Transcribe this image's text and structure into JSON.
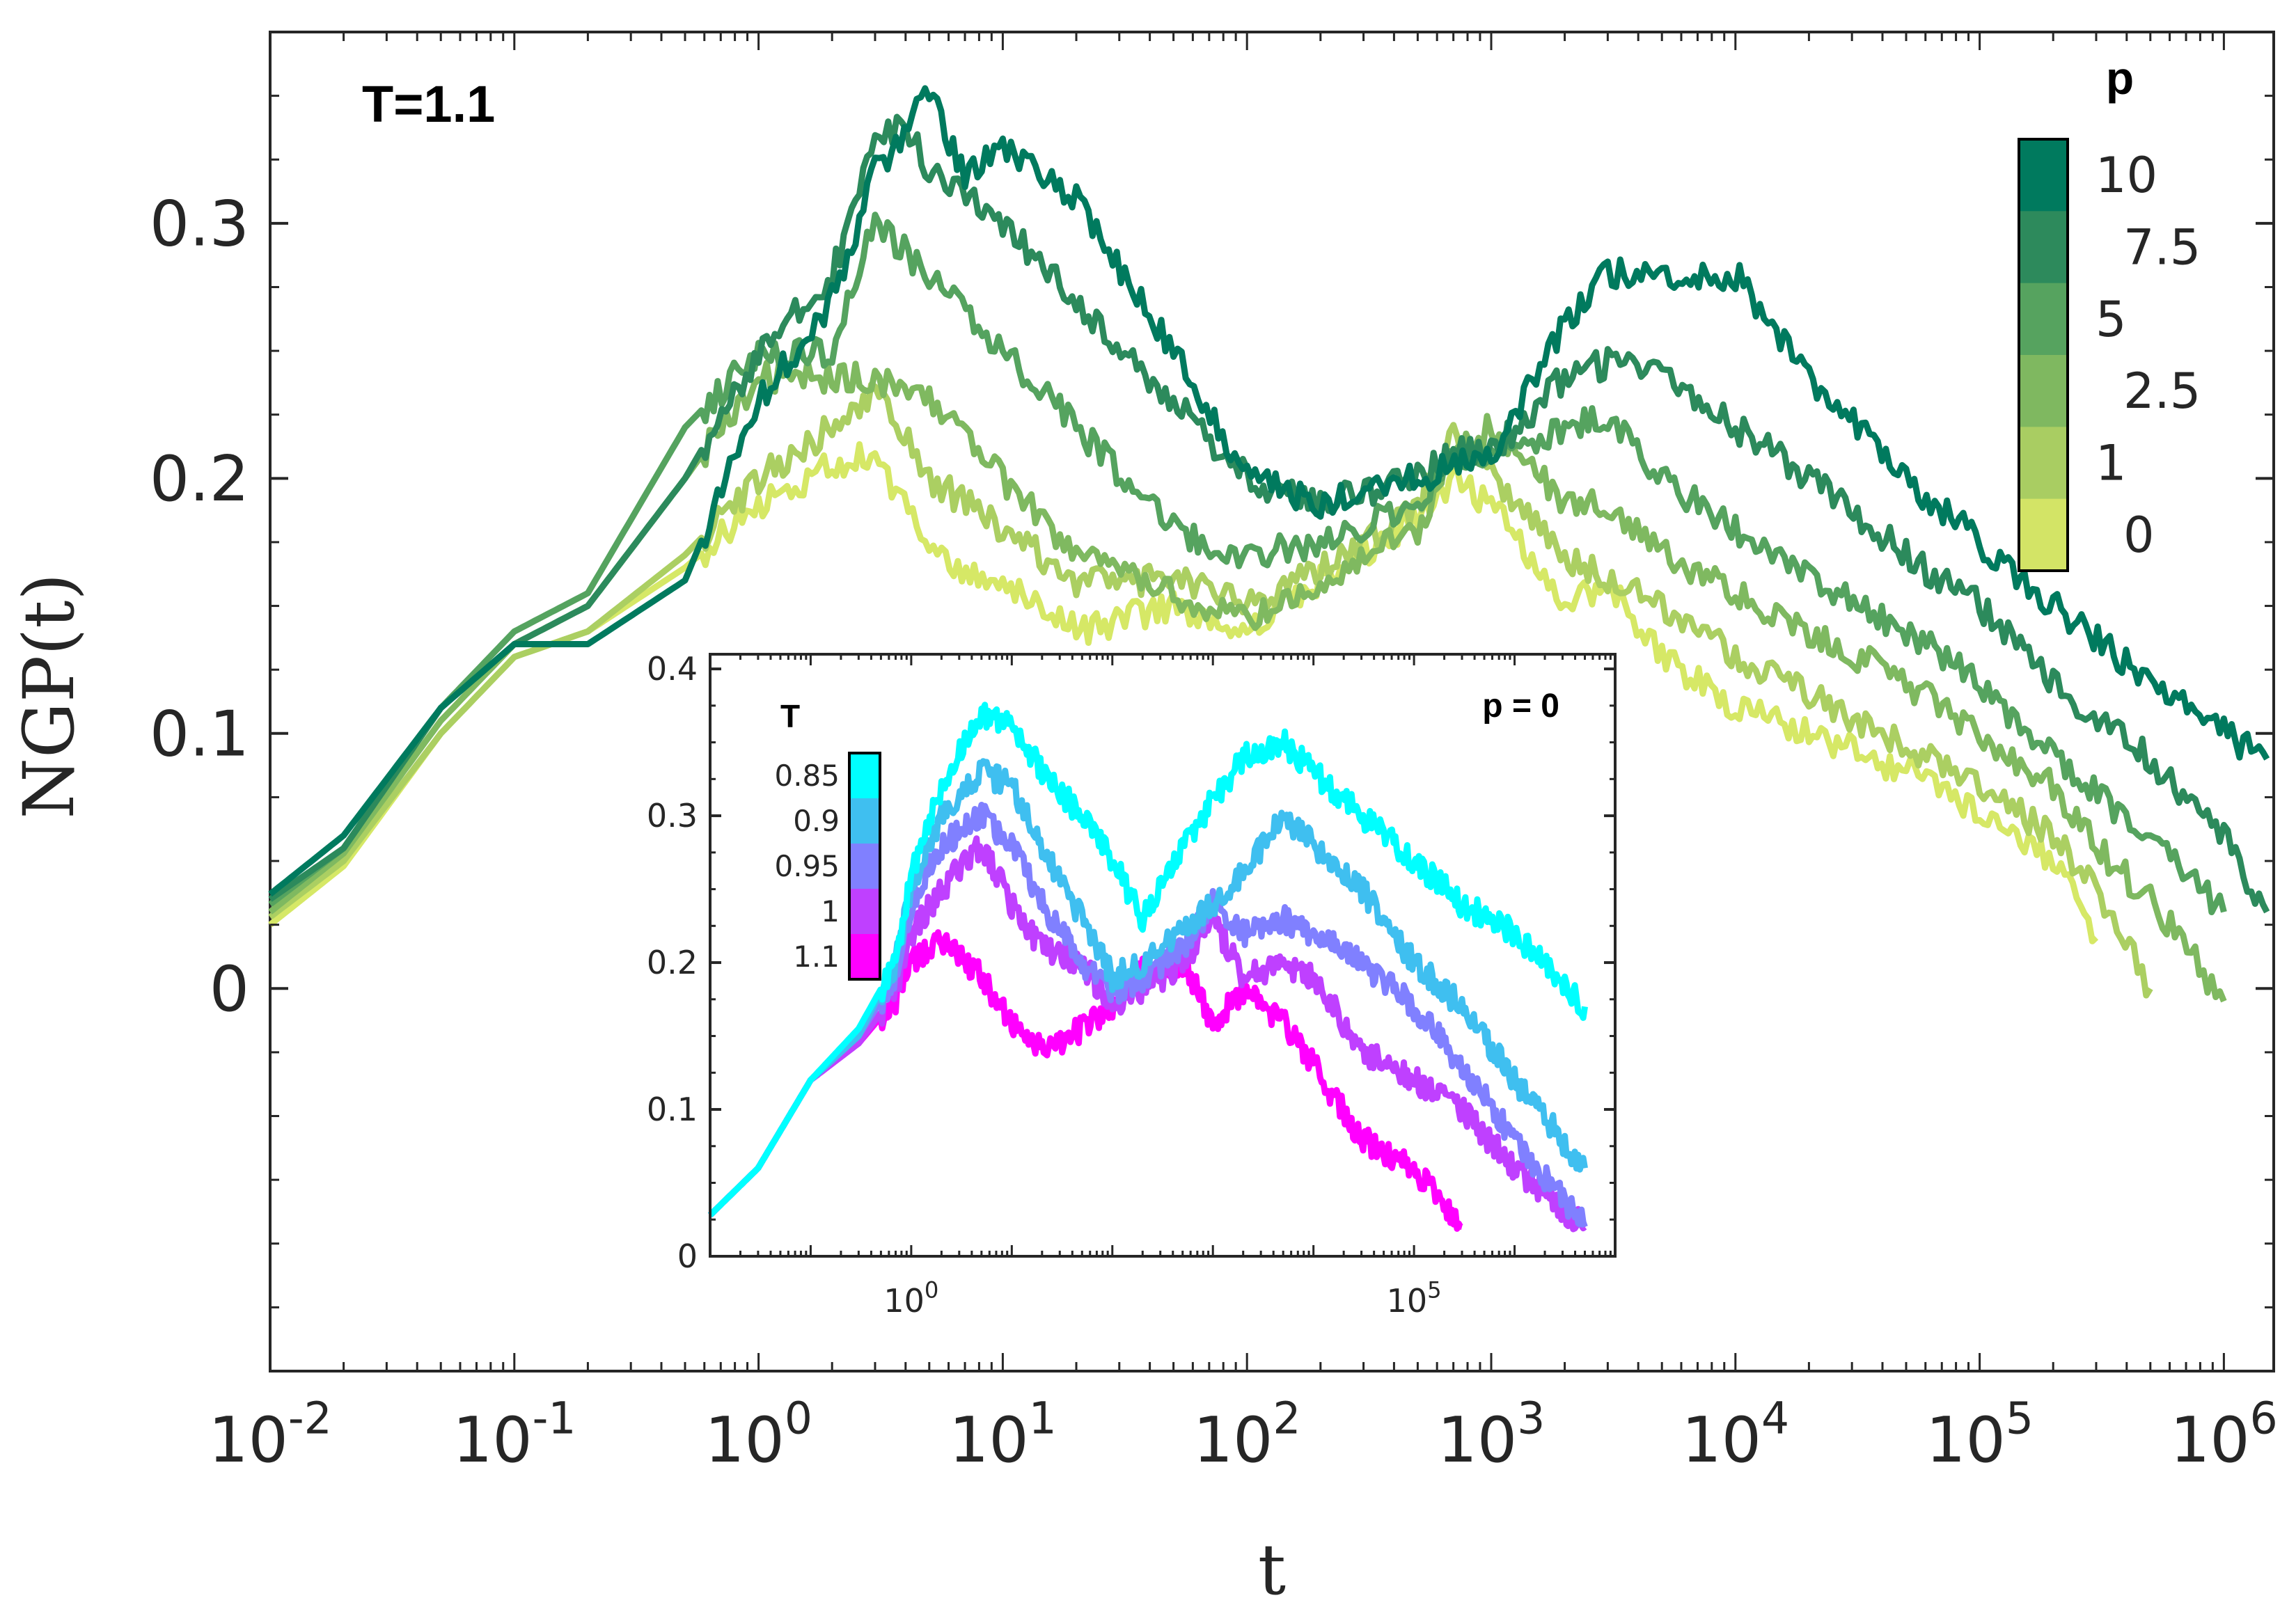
{
  "chart_data": [
    {
      "id": "main",
      "type": "line",
      "title": "",
      "annotation": "T=1.1",
      "xlabel": "t",
      "ylabel": "NGP(t)",
      "xscale": "log",
      "xlim": [
        0.01,
        1600000
      ],
      "ylim": [
        -0.15,
        0.375
      ],
      "xticks": [
        0.01,
        0.1,
        1,
        10,
        100,
        1000,
        10000,
        100000,
        1000000
      ],
      "xtick_labels": [
        {
          "base": "10",
          "exp": "-2"
        },
        {
          "base": "10",
          "exp": "-1"
        },
        {
          "base": "10",
          "exp": "0"
        },
        {
          "base": "10",
          "exp": "1"
        },
        {
          "base": "10",
          "exp": "2"
        },
        {
          "base": "10",
          "exp": "3"
        },
        {
          "base": "10",
          "exp": "4"
        },
        {
          "base": "10",
          "exp": "5"
        },
        {
          "base": "10",
          "exp": "6"
        }
      ],
      "yticks": [
        0,
        0.1,
        0.2,
        0.3
      ],
      "ytick_labels": [
        "0",
        "0.1",
        "0.2",
        "0.3"
      ],
      "colorbar": {
        "title": "p",
        "placement": "top-right",
        "labels": [
          "10",
          "7.5",
          "5",
          "2.5",
          "1",
          "0"
        ],
        "colors": [
          "#007a5e",
          "#2d8a5c",
          "#56a35f",
          "#7fb860",
          "#a9cd62",
          "#d3e466"
        ]
      },
      "series": [
        {
          "name": "p=0",
          "color": "#d6e866",
          "x": [
            0.01,
            0.02,
            0.05,
            0.1,
            0.2,
            0.5,
            1,
            2,
            3,
            5,
            10,
            20,
            50,
            100,
            200,
            500,
            700,
            1000,
            2000,
            3000,
            5000,
            10000,
            20000,
            50000,
            100000,
            200000,
            300000
          ],
          "y": [
            0.025,
            0.048,
            0.1,
            0.13,
            0.14,
            0.165,
            0.19,
            0.205,
            0.21,
            0.17,
            0.16,
            0.14,
            0.15,
            0.14,
            0.16,
            0.185,
            0.2,
            0.19,
            0.15,
            0.16,
            0.13,
            0.11,
            0.1,
            0.085,
            0.07,
            0.05,
            0.02
          ]
        },
        {
          "name": "p=1",
          "color": "#abcf62",
          "x": [
            0.01,
            0.02,
            0.05,
            0.1,
            0.2,
            0.5,
            1,
            2,
            3,
            5,
            10,
            20,
            50,
            100,
            200,
            500,
            700,
            1000,
            2000,
            3000,
            5000,
            10000,
            20000,
            50000,
            100000,
            200000,
            300000,
            500000
          ],
          "y": [
            0.028,
            0.05,
            0.1,
            0.13,
            0.14,
            0.17,
            0.2,
            0.22,
            0.235,
            0.2,
            0.18,
            0.16,
            0.16,
            0.15,
            0.165,
            0.19,
            0.215,
            0.2,
            0.17,
            0.16,
            0.15,
            0.13,
            0.115,
            0.095,
            0.08,
            0.06,
            0.04,
            0.0
          ]
        },
        {
          "name": "p=2.5",
          "color": "#7fb960",
          "x": [
            0.01,
            0.02,
            0.05,
            0.1,
            0.2,
            0.5,
            1,
            2,
            3,
            5,
            10,
            20,
            50,
            100,
            200,
            500,
            700,
            1000,
            2000,
            3000,
            5000,
            10000,
            20000,
            50000,
            100000,
            200000,
            300000,
            500000,
            1000000
          ],
          "y": [
            0.03,
            0.053,
            0.105,
            0.135,
            0.15,
            0.2,
            0.24,
            0.24,
            0.24,
            0.23,
            0.2,
            0.17,
            0.155,
            0.145,
            0.16,
            0.18,
            0.21,
            0.22,
            0.19,
            0.19,
            0.17,
            0.155,
            0.14,
            0.12,
            0.1,
            0.08,
            0.055,
            0.035,
            -0.005
          ]
        },
        {
          "name": "p=5",
          "color": "#55a35f",
          "x": [
            0.01,
            0.02,
            0.05,
            0.1,
            0.2,
            0.5,
            1,
            2,
            3,
            5,
            10,
            20,
            50,
            100,
            200,
            500,
            700,
            1000,
            2000,
            3000,
            5000,
            10000,
            20000,
            50000,
            100000,
            200000,
            500000,
            1000000
          ],
          "y": [
            0.033,
            0.055,
            0.11,
            0.14,
            0.155,
            0.22,
            0.25,
            0.25,
            0.3,
            0.28,
            0.25,
            0.22,
            0.18,
            0.17,
            0.175,
            0.19,
            0.21,
            0.21,
            0.22,
            0.225,
            0.2,
            0.18,
            0.16,
            0.14,
            0.12,
            0.09,
            0.06,
            0.03
          ]
        },
        {
          "name": "p=7.5",
          "color": "#2c8a5c",
          "x": [
            0.01,
            0.02,
            0.05,
            0.1,
            0.2,
            0.5,
            1,
            2,
            3,
            4,
            5,
            10,
            20,
            50,
            100,
            200,
            500,
            700,
            1000,
            2000,
            3000,
            5000,
            10000,
            20000,
            50000,
            100000,
            200000,
            500000,
            1000000,
            1500000
          ],
          "y": [
            0.035,
            0.055,
            0.11,
            0.135,
            0.15,
            0.2,
            0.25,
            0.28,
            0.33,
            0.34,
            0.32,
            0.3,
            0.27,
            0.23,
            0.2,
            0.19,
            0.2,
            0.21,
            0.21,
            0.24,
            0.245,
            0.24,
            0.22,
            0.2,
            0.17,
            0.15,
            0.12,
            0.09,
            0.06,
            0.03
          ]
        },
        {
          "name": "p=10",
          "color": "#007a5e",
          "x": [
            0.01,
            0.02,
            0.05,
            0.1,
            0.2,
            0.5,
            1,
            2,
            3,
            5,
            7,
            10,
            20,
            50,
            100,
            200,
            500,
            1000,
            2000,
            3000,
            5000,
            10000,
            20000,
            50000,
            100000,
            200000,
            500000,
            1000000,
            1500000
          ],
          "y": [
            0.037,
            0.06,
            0.11,
            0.135,
            0.135,
            0.16,
            0.23,
            0.27,
            0.32,
            0.35,
            0.32,
            0.33,
            0.31,
            0.25,
            0.2,
            0.19,
            0.2,
            0.21,
            0.26,
            0.28,
            0.28,
            0.28,
            0.24,
            0.2,
            0.175,
            0.15,
            0.12,
            0.1,
            0.09
          ]
        }
      ]
    },
    {
      "id": "inset",
      "type": "line",
      "annotation": "p = 0",
      "xscale": "log",
      "xlim": [
        0.01,
        10000000
      ],
      "ylim": [
        0,
        0.41
      ],
      "xticks": [
        1,
        100000
      ],
      "xtick_labels": [
        {
          "base": "10",
          "exp": "0"
        },
        {
          "base": "10",
          "exp": "5"
        }
      ],
      "yticks": [
        0,
        0.1,
        0.2,
        0.3,
        0.4
      ],
      "ytick_labels": [
        "0",
        "0.1",
        "0.2",
        "0.3",
        "0.4"
      ],
      "colorbar": {
        "title": "T",
        "placement": "top-left",
        "labels": [
          "0.85",
          "0.9",
          "0.95",
          "1",
          "1.1"
        ],
        "colors": [
          "#00ffff",
          "#3fbff0",
          "#8080ff",
          "#bf40ff",
          "#ff00ff"
        ]
      },
      "series": [
        {
          "name": "T=1.1",
          "color": "#ff00ff",
          "x": [
            0.01,
            0.03,
            0.1,
            0.3,
            0.7,
            1,
            2,
            5,
            10,
            20,
            50,
            100,
            200,
            500,
            1000,
            2000,
            5000,
            10000,
            30000,
            100000,
            300000
          ],
          "y": [
            0.028,
            0.06,
            0.12,
            0.145,
            0.175,
            0.2,
            0.215,
            0.19,
            0.16,
            0.14,
            0.155,
            0.17,
            0.195,
            0.2,
            0.16,
            0.18,
            0.16,
            0.13,
            0.08,
            0.06,
            0.02
          ]
        },
        {
          "name": "T=1",
          "color": "#bf40ff",
          "x": [
            0.01,
            0.03,
            0.1,
            0.3,
            0.7,
            1,
            2,
            5,
            10,
            20,
            50,
            100,
            200,
            500,
            1000,
            2000,
            5000,
            10000,
            30000,
            100000,
            300000,
            1000000,
            5000000
          ],
          "y": [
            0.028,
            0.06,
            0.12,
            0.145,
            0.18,
            0.22,
            0.25,
            0.28,
            0.24,
            0.21,
            0.2,
            0.17,
            0.18,
            0.2,
            0.23,
            0.19,
            0.2,
            0.19,
            0.14,
            0.12,
            0.1,
            0.06,
            0.02
          ]
        },
        {
          "name": "T=0.95",
          "color": "#8080ff",
          "x": [
            0.01,
            0.03,
            0.1,
            0.3,
            0.7,
            1,
            2,
            5,
            10,
            20,
            50,
            100,
            200,
            500,
            1000,
            2000,
            5000,
            10000,
            30000,
            100000,
            300000,
            1000000,
            5000000
          ],
          "y": [
            0.028,
            0.06,
            0.12,
            0.15,
            0.19,
            0.24,
            0.28,
            0.3,
            0.28,
            0.24,
            0.2,
            0.18,
            0.19,
            0.21,
            0.24,
            0.22,
            0.23,
            0.22,
            0.2,
            0.17,
            0.13,
            0.08,
            0.02
          ]
        },
        {
          "name": "T=0.9",
          "color": "#3fbff0",
          "x": [
            0.01,
            0.03,
            0.1,
            0.3,
            0.7,
            1,
            2,
            5,
            10,
            20,
            50,
            100,
            200,
            500,
            1000,
            2000,
            5000,
            10000,
            30000,
            100000,
            300000,
            1000000,
            5000000
          ],
          "y": [
            0.028,
            0.06,
            0.12,
            0.15,
            0.2,
            0.25,
            0.3,
            0.33,
            0.32,
            0.28,
            0.23,
            0.19,
            0.2,
            0.22,
            0.24,
            0.26,
            0.3,
            0.28,
            0.25,
            0.2,
            0.17,
            0.12,
            0.06
          ]
        },
        {
          "name": "T=0.85",
          "color": "#00ffff",
          "x": [
            0.01,
            0.03,
            0.1,
            0.3,
            0.7,
            1,
            2,
            5,
            10,
            20,
            50,
            100,
            200,
            500,
            1000,
            2000,
            5000,
            10000,
            30000,
            100000,
            300000,
            1000000,
            5000000
          ],
          "y": [
            0.028,
            0.06,
            0.12,
            0.155,
            0.2,
            0.26,
            0.32,
            0.37,
            0.36,
            0.33,
            0.3,
            0.27,
            0.23,
            0.28,
            0.31,
            0.34,
            0.35,
            0.33,
            0.3,
            0.27,
            0.24,
            0.22,
            0.17
          ]
        }
      ]
    }
  ]
}
